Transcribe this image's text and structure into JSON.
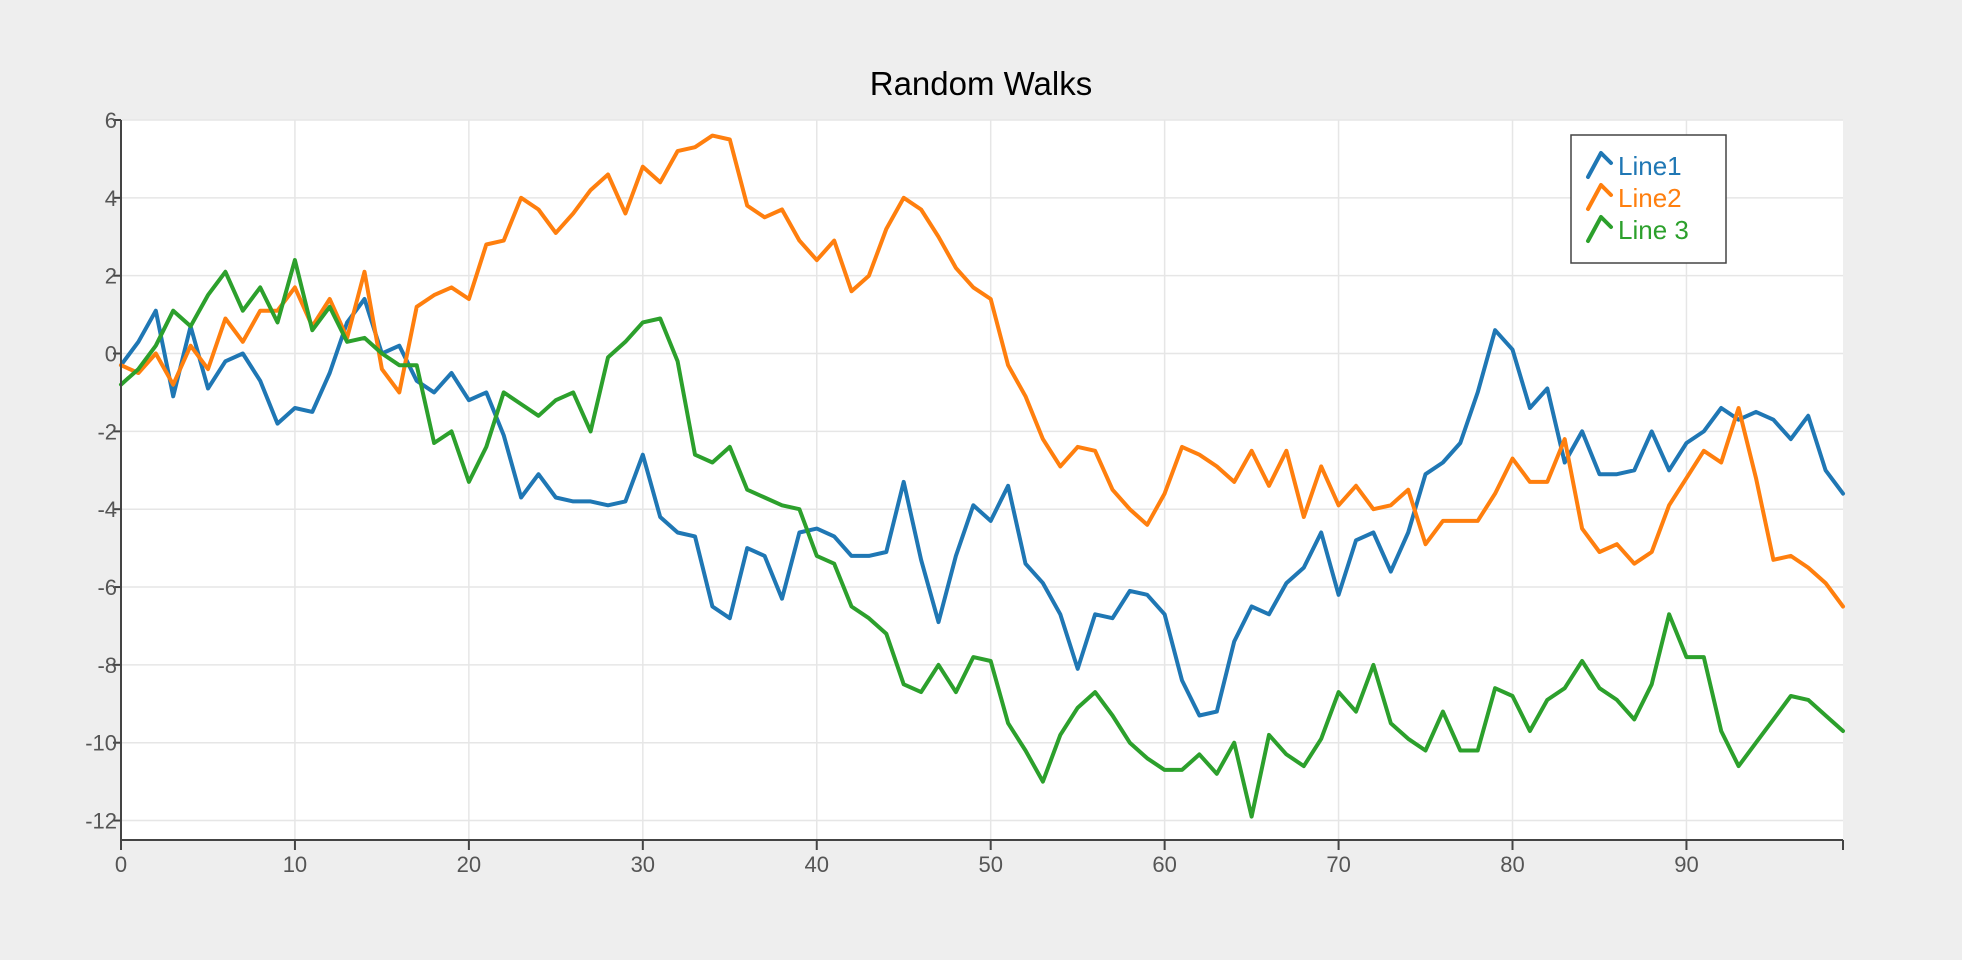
{
  "chart_data": {
    "type": "line",
    "title": "Random Walks",
    "xlabel": "",
    "ylabel": "",
    "xlim": [
      0,
      99
    ],
    "ylim": [
      -12.5,
      6
    ],
    "x_ticks": [
      0,
      10,
      20,
      30,
      40,
      50,
      60,
      70,
      80,
      90
    ],
    "x_tick_labels": [
      "0",
      "10",
      "20",
      "30",
      "40",
      "50",
      "60",
      "70",
      "80",
      "90"
    ],
    "y_ticks": [
      6,
      4,
      2,
      0,
      -2,
      -4,
      -6,
      -8,
      -10,
      -12
    ],
    "y_tick_labels": [
      "6",
      "4",
      "2",
      "0",
      "-2",
      "-4",
      "-6",
      "-8",
      "-10",
      "-12"
    ],
    "grid": true,
    "legend": "top-right",
    "series": [
      {
        "name": "Line1",
        "color": "#1f77b4",
        "values": [
          -0.3,
          0.3,
          1.1,
          -1.1,
          0.7,
          -0.9,
          -0.2,
          0.0,
          -0.7,
          -1.8,
          -1.4,
          -1.5,
          -0.5,
          0.8,
          1.4,
          0.0,
          0.2,
          -0.7,
          -1.0,
          -0.5,
          -1.2,
          -1.0,
          -2.1,
          -3.7,
          -3.1,
          -3.7,
          -3.8,
          -3.8,
          -3.9,
          -3.8,
          -2.6,
          -4.2,
          -4.6,
          -4.7,
          -6.5,
          -6.8,
          -5.0,
          -5.2,
          -6.3,
          -4.6,
          -4.5,
          -4.7,
          -5.2,
          -5.2,
          -5.1,
          -3.3,
          -5.3,
          -6.9,
          -5.2,
          -3.9,
          -4.3,
          -3.4,
          -5.4,
          -5.9,
          -6.7,
          -8.1,
          -6.7,
          -6.8,
          -6.1,
          -6.2,
          -6.7,
          -8.4,
          -9.3,
          -9.2,
          -7.4,
          -6.5,
          -6.7,
          -5.9,
          -5.5,
          -4.6,
          -6.2,
          -4.8,
          -4.6,
          -5.6,
          -4.6,
          -3.1,
          -2.8,
          -2.3,
          -1.0,
          0.6,
          0.1,
          -1.4,
          -0.9,
          -2.8,
          -2.0,
          -3.1,
          -3.1,
          -3.0,
          -2.0,
          -3.0,
          -2.3,
          -2.0,
          -1.4,
          -1.7,
          -1.5,
          -1.7,
          -2.2,
          -1.6,
          -3.0,
          -3.6
        ]
      },
      {
        "name": "Line2",
        "color": "#ff7f0e",
        "values": [
          -0.3,
          -0.5,
          0.0,
          -0.8,
          0.2,
          -0.4,
          0.9,
          0.3,
          1.1,
          1.1,
          1.7,
          0.7,
          1.4,
          0.4,
          2.1,
          -0.4,
          -1.0,
          1.2,
          1.5,
          1.7,
          1.4,
          2.8,
          2.9,
          4.0,
          3.7,
          3.1,
          3.6,
          4.2,
          4.6,
          3.6,
          4.8,
          4.4,
          5.2,
          5.3,
          5.6,
          5.5,
          3.8,
          3.5,
          3.7,
          2.9,
          2.4,
          2.9,
          1.6,
          2.0,
          3.2,
          4.0,
          3.7,
          3.0,
          2.2,
          1.7,
          1.4,
          -0.3,
          -1.1,
          -2.2,
          -2.9,
          -2.4,
          -2.5,
          -3.5,
          -4.0,
          -4.4,
          -3.6,
          -2.4,
          -2.6,
          -2.9,
          -3.3,
          -2.5,
          -3.4,
          -2.5,
          -4.2,
          -2.9,
          -3.9,
          -3.4,
          -4.0,
          -3.9,
          -3.5,
          -4.9,
          -4.3,
          -4.3,
          -4.3,
          -3.6,
          -2.7,
          -3.3,
          -3.3,
          -2.2,
          -4.5,
          -5.1,
          -4.9,
          -5.4,
          -5.1,
          -3.9,
          -3.2,
          -2.5,
          -2.8,
          -1.4,
          -3.2,
          -5.3,
          -5.2,
          -5.5,
          -5.9,
          -6.5
        ]
      },
      {
        "name": "Line 3",
        "color": "#2ca02c",
        "values": [
          -0.8,
          -0.4,
          0.2,
          1.1,
          0.7,
          1.5,
          2.1,
          1.1,
          1.7,
          0.8,
          2.4,
          0.6,
          1.2,
          0.3,
          0.4,
          0.0,
          -0.3,
          -0.3,
          -2.3,
          -2.0,
          -3.3,
          -2.4,
          -1.0,
          -1.3,
          -1.6,
          -1.2,
          -1.0,
          -2.0,
          -0.1,
          0.3,
          0.8,
          0.9,
          -0.2,
          -2.6,
          -2.8,
          -2.4,
          -3.5,
          -3.7,
          -3.9,
          -4.0,
          -5.2,
          -5.4,
          -6.5,
          -6.8,
          -7.2,
          -8.5,
          -8.7,
          -8.0,
          -8.7,
          -7.8,
          -7.9,
          -9.5,
          -10.2,
          -11.0,
          -9.8,
          -9.1,
          -8.7,
          -9.3,
          -10.0,
          -10.4,
          -10.7,
          -10.7,
          -10.3,
          -10.8,
          -10.0,
          -11.9,
          -9.8,
          -10.3,
          -10.6,
          -9.9,
          -8.7,
          -9.2,
          -8.0,
          -9.5,
          -9.9,
          -10.2,
          -9.2,
          -10.2,
          -10.2,
          -8.6,
          -8.8,
          -9.7,
          -8.9,
          -8.6,
          -7.9,
          -8.6,
          -8.9,
          -9.4,
          -8.5,
          -6.7,
          -7.8,
          -7.8,
          -9.7,
          -10.6,
          -10.0,
          -9.4,
          -8.8,
          -8.9,
          -9.3,
          -9.7
        ]
      }
    ]
  }
}
